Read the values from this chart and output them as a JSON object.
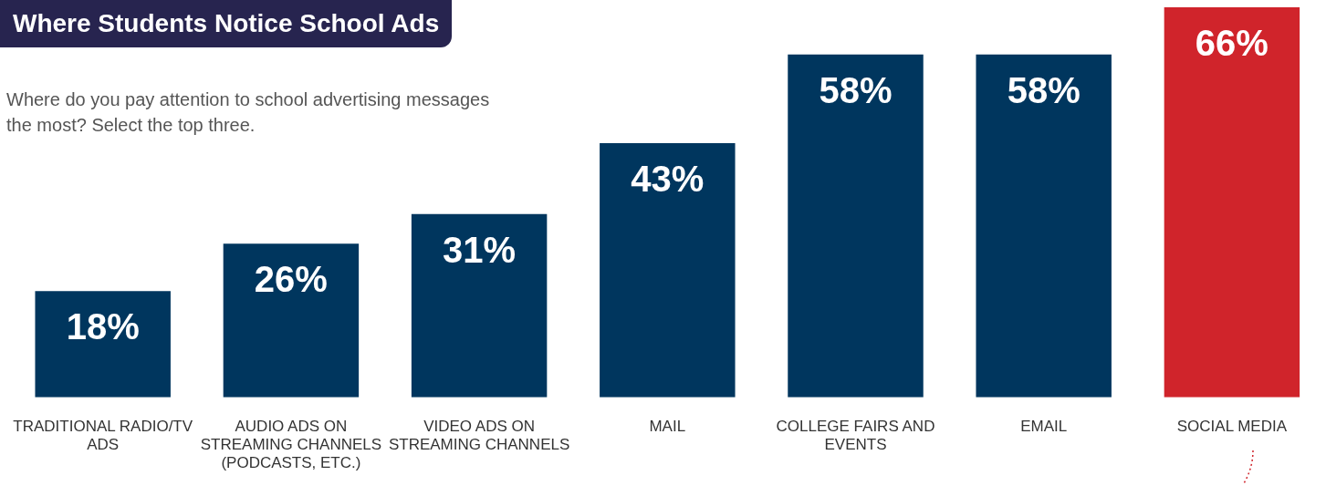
{
  "chart_data": {
    "type": "bar",
    "title": "Where Students Notice School Ads",
    "subtitle": "Where do you pay attention to school advertising messages the most? Select the top three.",
    "categories": [
      "TRADITIONAL RADIO/TV ADS",
      "AUDIO ADS ON STREAMING CHANNELS (PODCASTS, ETC.)",
      "VIDEO ADS ON STREAMING CHANNELS",
      "MAIL",
      "COLLEGE FAIRS AND EVENTS",
      "EMAIL",
      "SOCIAL MEDIA"
    ],
    "values": [
      18,
      26,
      31,
      43,
      58,
      58,
      66
    ],
    "value_labels": [
      "18%",
      "26%",
      "31%",
      "43%",
      "58%",
      "58%",
      "66%"
    ],
    "colors": [
      "#00365e",
      "#00365e",
      "#00365e",
      "#00365e",
      "#00365e",
      "#00365e",
      "#d0242b"
    ]
  }
}
